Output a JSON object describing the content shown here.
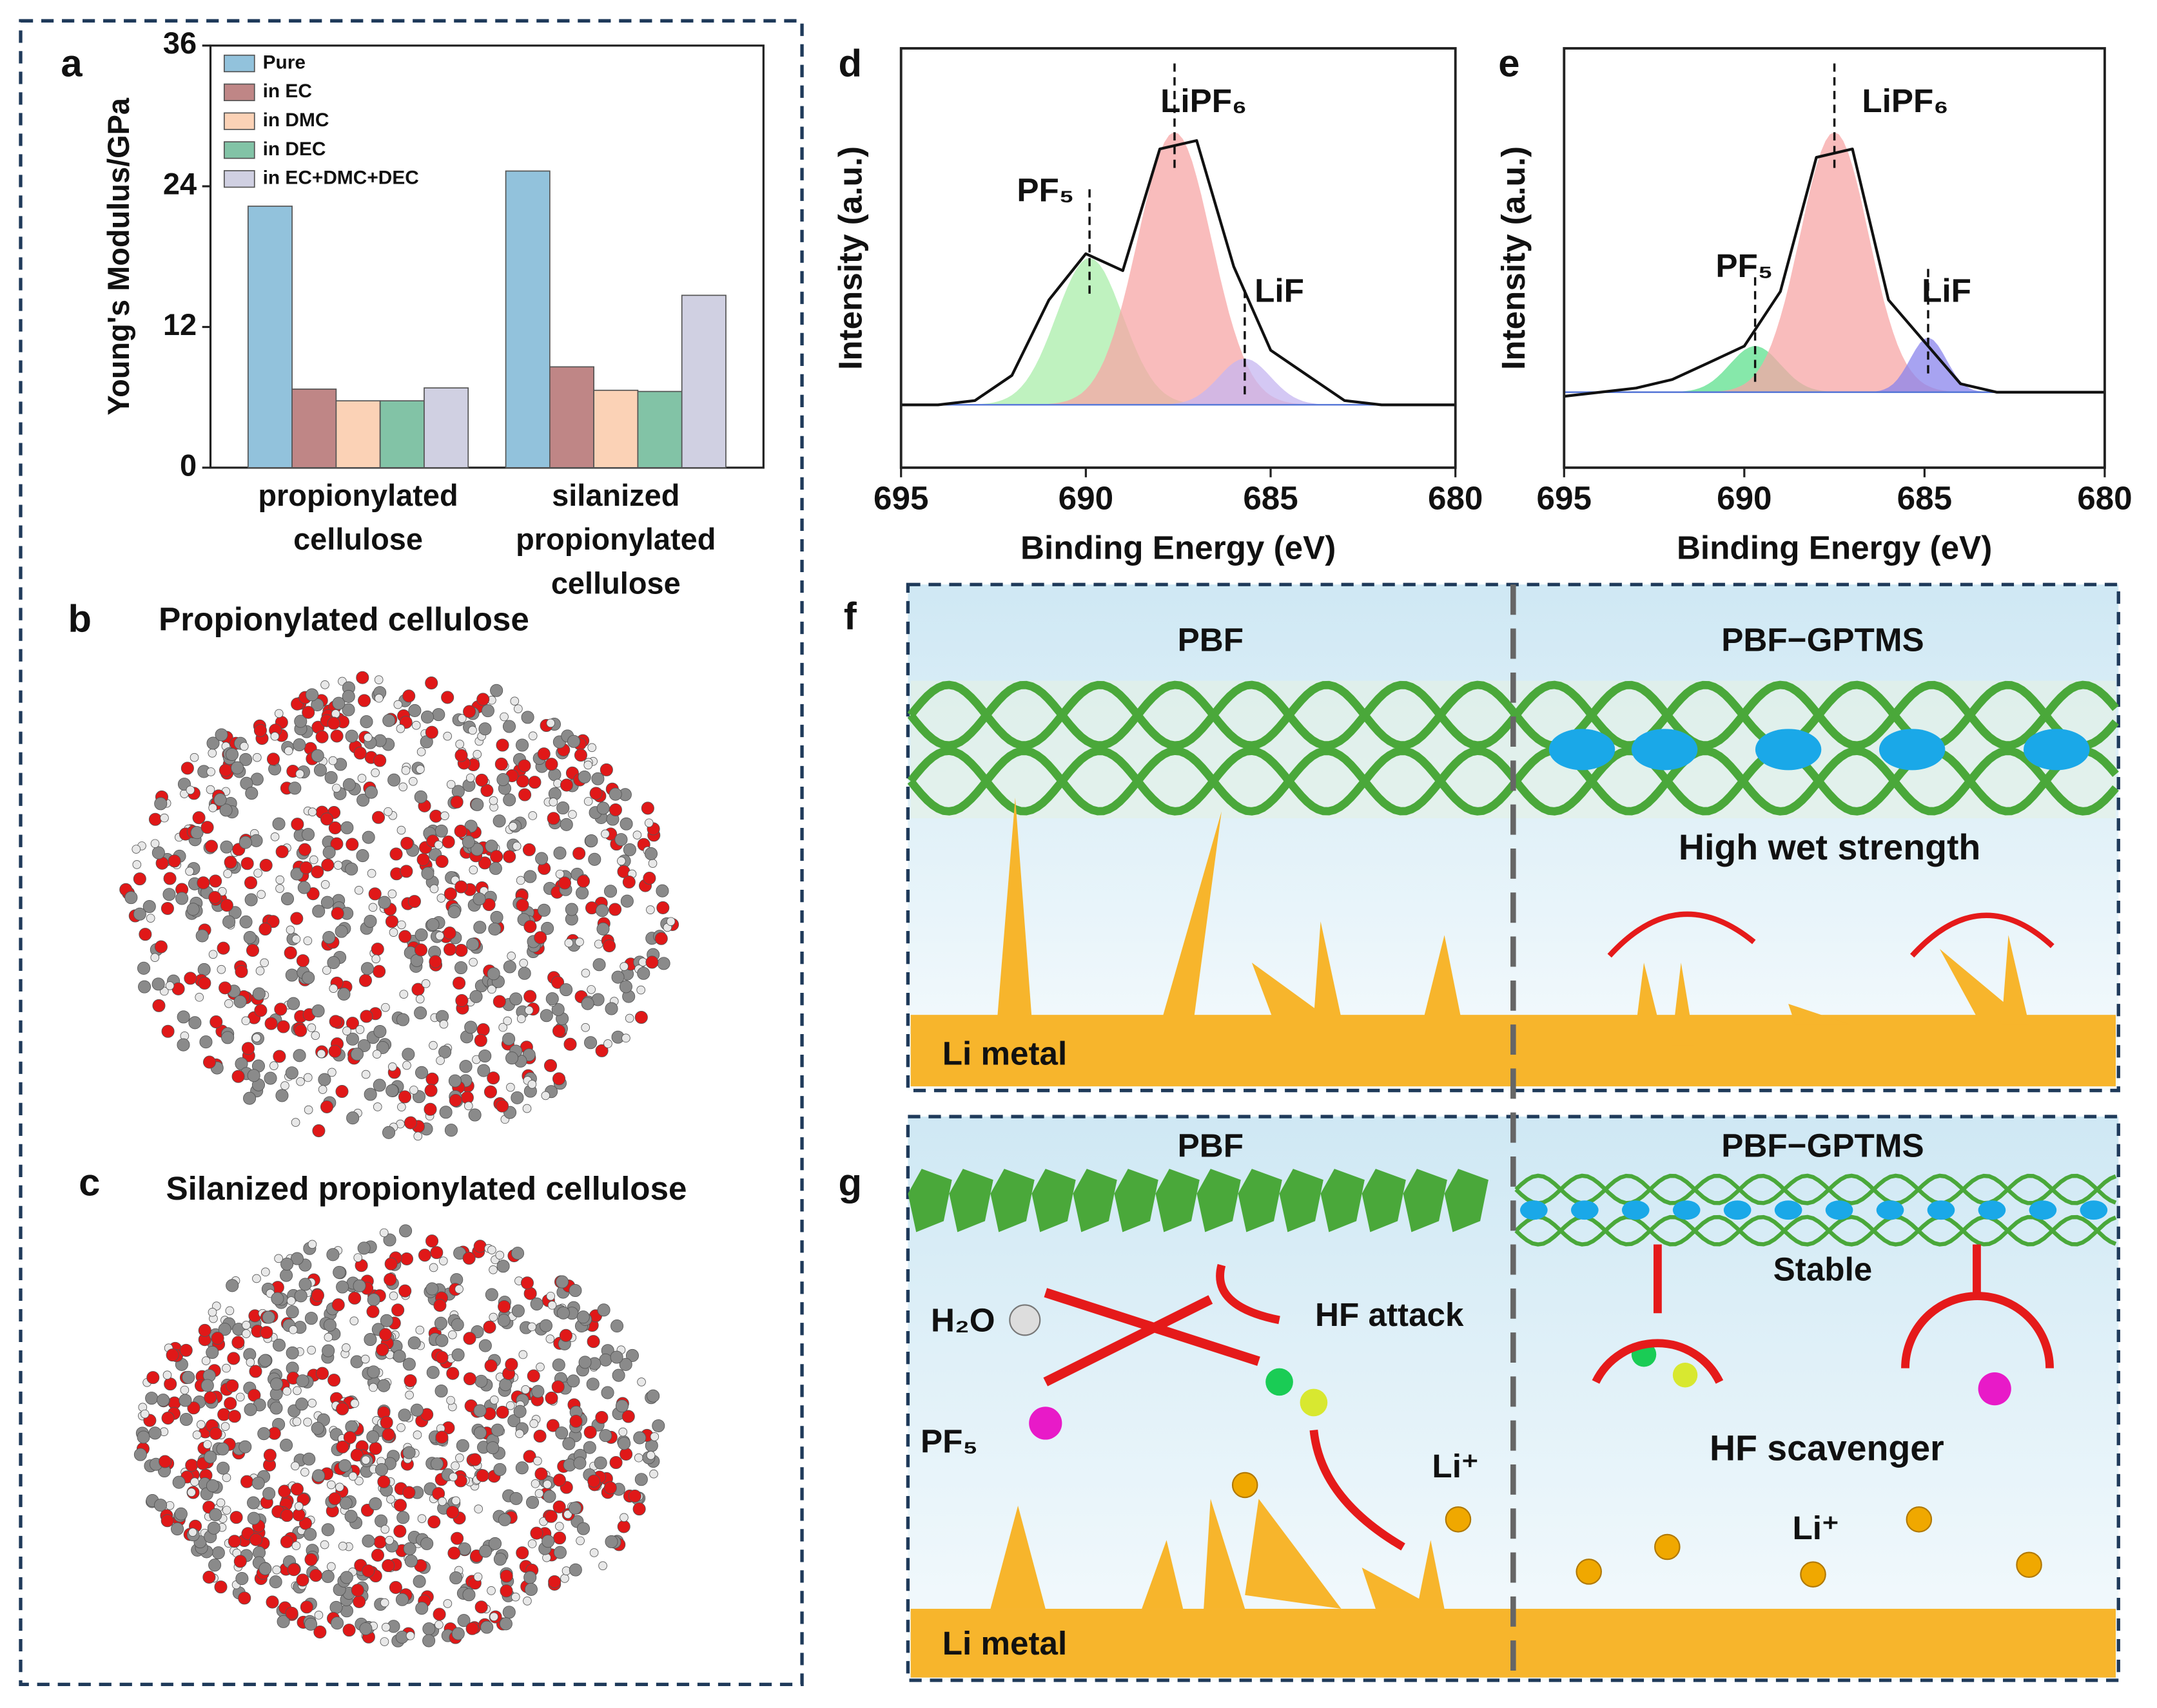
{
  "panel_labels": [
    "a",
    "b",
    "c",
    "d",
    "e",
    "f",
    "g"
  ],
  "chart_data": [
    {
      "type": "bar",
      "ylabel": "Young's Modulus/GPa",
      "categories": [
        "propionylated cellulose",
        "silanized propionylated cellulose"
      ],
      "series": [
        {
          "name": "Pure",
          "color": "#92c2dc",
          "values": [
            22.3,
            25.3
          ]
        },
        {
          "name": "in EC",
          "color": "#bf8686",
          "values": [
            6.7,
            8.6
          ]
        },
        {
          "name": "in DMC",
          "color": "#fbd2b6",
          "values": [
            5.7,
            6.6
          ]
        },
        {
          "name": "in DEC",
          "color": "#82c3a6",
          "values": [
            5.7,
            6.5
          ]
        },
        {
          "name": "in EC+DMC+DEC",
          "color": "#d0d0e2",
          "values": [
            6.8,
            14.7
          ]
        }
      ],
      "ylim": [
        0,
        36
      ],
      "yticks": [
        0,
        12,
        24,
        36
      ]
    },
    {
      "type": "xps",
      "xlabel": "Binding Energy (eV)",
      "ylabel": "Intensity (a.u.)",
      "xlim": [
        695,
        680
      ],
      "xticks": [
        695,
        690,
        685,
        680
      ],
      "ylim": [
        0,
        1
      ],
      "baseline": 0.15,
      "x": [
        695,
        694,
        693,
        692,
        691,
        690,
        689,
        688,
        687,
        686,
        685,
        684,
        683,
        682,
        681,
        680
      ],
      "values": [
        0.15,
        0.15,
        0.16,
        0.22,
        0.4,
        0.51,
        0.47,
        0.76,
        0.78,
        0.48,
        0.28,
        0.22,
        0.16,
        0.15,
        0.15,
        0.15
      ],
      "peaks": [
        {
          "label": "PF₅",
          "center": 689.9,
          "height": 0.5,
          "width": 0.9,
          "color": "#a9eea9"
        },
        {
          "label": "LiPF₆",
          "center": 687.6,
          "height": 0.8,
          "width": 1.0,
          "color": "#f7a6a6"
        },
        {
          "label": "LiF",
          "center": 685.7,
          "height": 0.26,
          "width": 0.7,
          "color": "#c6b6f0"
        }
      ]
    },
    {
      "type": "xps",
      "xlabel": "Binding Energy (eV)",
      "ylabel": "Intensity (a.u.)",
      "xlim": [
        695,
        680
      ],
      "xticks": [
        695,
        690,
        685,
        680
      ],
      "ylim": [
        0,
        1
      ],
      "baseline": 0.18,
      "x": [
        695,
        694,
        693,
        692,
        691,
        690,
        689,
        688,
        687,
        686,
        685,
        684,
        683,
        682,
        681,
        680
      ],
      "values": [
        0.17,
        0.18,
        0.19,
        0.21,
        0.25,
        0.29,
        0.42,
        0.74,
        0.76,
        0.4,
        0.3,
        0.2,
        0.18,
        0.18,
        0.18,
        0.18
      ],
      "peaks": [
        {
          "label": "PF₅",
          "center": 689.7,
          "height": 0.29,
          "width": 0.7,
          "color": "#5ee08e"
        },
        {
          "label": "LiPF₆",
          "center": 687.5,
          "height": 0.8,
          "width": 0.95,
          "color": "#f7a6a6"
        },
        {
          "label": "LiF",
          "center": 684.9,
          "height": 0.31,
          "width": 0.5,
          "color": "#8a84ec"
        }
      ]
    }
  ],
  "models": [
    {
      "title": "Propionylated cellulose"
    },
    {
      "title": "Silanized propionylated cellulose"
    }
  ],
  "schematic_f": {
    "left_title": "PBF",
    "right_title": "PBF−GPTMS",
    "caption": "High wet strength",
    "electrode": "Li metal"
  },
  "schematic_g": {
    "left_title": "PBF",
    "right_title": "PBF−GPTMS",
    "water": "H₂O",
    "pf5": "PF₅",
    "attack": "HF attack",
    "li_ion_left": "Li⁺",
    "stable": "Stable",
    "scavenger": "HF scavenger",
    "li_ion_right": "Li⁺",
    "electrode": "Li metal"
  }
}
